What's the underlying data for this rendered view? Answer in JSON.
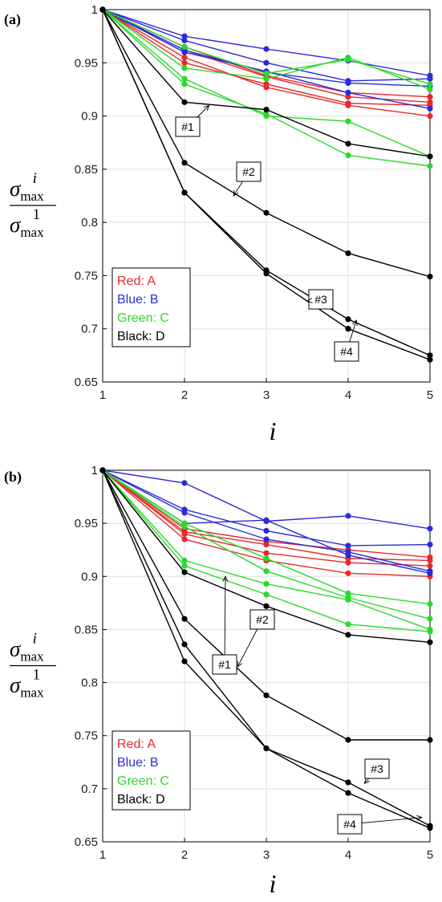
{
  "chart_data": [
    {
      "panel_label": "(a)",
      "type": "line",
      "x": [
        1,
        2,
        3,
        4,
        5
      ],
      "xlabel": "i",
      "ylabel": {
        "numerator": "σ",
        "num_sub": "max",
        "num_sup": "i",
        "denominator": "σ",
        "den_sub": "max",
        "den_sup": "1"
      },
      "xlim": [
        1,
        5
      ],
      "ylim": [
        0.65,
        1
      ],
      "x_ticks": [
        "1",
        "2",
        "3",
        "4",
        "5"
      ],
      "y_ticks": [
        "0.65",
        "0.7",
        "0.75",
        "0.8",
        "0.85",
        "0.9",
        "0.95",
        "1"
      ],
      "grid": true,
      "legend_position": "bottom-left",
      "legend": [
        {
          "label": "Red: A",
          "color": "#e8292b"
        },
        {
          "label": "Blue: B",
          "color": "#2b2bd9"
        },
        {
          "label": "Green: C",
          "color": "#2bd92b"
        },
        {
          "label": "Black: D",
          "color": "#000000"
        }
      ],
      "series": [
        {
          "group": "A",
          "color": "#e8292b",
          "values": [
            1,
            0.955,
            0.927,
            0.91,
            0.9
          ]
        },
        {
          "group": "A",
          "color": "#e8292b",
          "values": [
            1,
            0.962,
            0.937,
            0.918,
            0.913
          ]
        },
        {
          "group": "A",
          "color": "#e8292b",
          "values": [
            1,
            0.965,
            0.938,
            0.922,
            0.918
          ]
        },
        {
          "group": "A",
          "color": "#e8292b",
          "values": [
            1,
            0.95,
            0.93,
            0.912,
            0.91
          ]
        },
        {
          "group": "B",
          "color": "#2b2bd9",
          "values": [
            1,
            0.975,
            0.963,
            0.952,
            0.938
          ]
        },
        {
          "group": "B",
          "color": "#2b2bd9",
          "values": [
            1,
            0.971,
            0.95,
            0.933,
            0.935
          ]
        },
        {
          "group": "B",
          "color": "#2b2bd9",
          "values": [
            1,
            0.962,
            0.941,
            0.931,
            0.928
          ]
        },
        {
          "group": "B",
          "color": "#2b2bd9",
          "values": [
            1,
            0.96,
            0.942,
            0.922,
            0.907
          ]
        },
        {
          "group": "C",
          "color": "#2bd92b",
          "values": [
            1,
            0.945,
            0.935,
            0.955,
            0.925
          ]
        },
        {
          "group": "C",
          "color": "#2bd92b",
          "values": [
            1,
            0.935,
            0.9,
            0.895,
            0.862
          ]
        },
        {
          "group": "C",
          "color": "#2bd92b",
          "values": [
            1,
            0.93,
            0.902,
            0.863,
            0.853
          ]
        },
        {
          "group": "C",
          "color": "#2bd92b",
          "values": [
            1,
            0.965,
            0.94,
            0.953,
            0.93
          ]
        },
        {
          "group": "D",
          "color": "#000000",
          "values": [
            1,
            0.913,
            0.906,
            0.874,
            0.862
          ]
        },
        {
          "group": "D",
          "color": "#000000",
          "values": [
            1,
            0.856,
            0.809,
            0.771,
            0.749
          ]
        },
        {
          "group": "D",
          "color": "#000000",
          "values": [
            1,
            0.828,
            0.755,
            0.709,
            0.675
          ]
        },
        {
          "group": "D",
          "color": "#000000",
          "values": [
            1,
            0.828,
            0.752,
            0.7,
            0.671
          ]
        }
      ],
      "annotations": [
        {
          "text": "#1",
          "target": [
            2.3,
            0.91
          ]
        },
        {
          "text": "#2",
          "target": [
            2.6,
            0.825
          ]
        },
        {
          "text": "#3",
          "target": [
            3.5,
            0.726
          ]
        },
        {
          "text": "#4",
          "target": [
            4.1,
            0.708
          ]
        }
      ]
    },
    {
      "panel_label": "(b)",
      "type": "line",
      "x": [
        1,
        2,
        3,
        4,
        5
      ],
      "xlabel": "i",
      "ylabel": {
        "numerator": "σ",
        "num_sub": "max",
        "num_sup": "i",
        "denominator": "σ",
        "den_sub": "max",
        "den_sup": "1"
      },
      "xlim": [
        1,
        5
      ],
      "ylim": [
        0.65,
        1
      ],
      "x_ticks": [
        "1",
        "2",
        "3",
        "4",
        "5"
      ],
      "y_ticks": [
        "0.65",
        "0.7",
        "0.75",
        "0.8",
        "0.85",
        "0.9",
        "0.95",
        "1"
      ],
      "grid": true,
      "legend_position": "bottom-left",
      "legend": [
        {
          "label": "Red: A",
          "color": "#e8292b"
        },
        {
          "label": "Blue: B",
          "color": "#2b2bd9"
        },
        {
          "label": "Green: C",
          "color": "#2bd92b"
        },
        {
          "label": "Black: D",
          "color": "#000000"
        }
      ],
      "series": [
        {
          "group": "A",
          "color": "#e8292b",
          "values": [
            1,
            0.935,
            0.915,
            0.903,
            0.9
          ]
        },
        {
          "group": "A",
          "color": "#e8292b",
          "values": [
            1,
            0.94,
            0.922,
            0.913,
            0.91
          ]
        },
        {
          "group": "A",
          "color": "#e8292b",
          "values": [
            1,
            0.942,
            0.93,
            0.917,
            0.915
          ]
        },
        {
          "group": "A",
          "color": "#e8292b",
          "values": [
            1,
            0.945,
            0.933,
            0.925,
            0.918
          ]
        },
        {
          "group": "B",
          "color": "#2b2bd9",
          "values": [
            1,
            0.988,
            0.952,
            0.957,
            0.945
          ]
        },
        {
          "group": "B",
          "color": "#2b2bd9",
          "values": [
            1,
            0.963,
            0.943,
            0.929,
            0.93
          ]
        },
        {
          "group": "B",
          "color": "#2b2bd9",
          "values": [
            1,
            0.96,
            0.935,
            0.923,
            0.905
          ]
        },
        {
          "group": "B",
          "color": "#2b2bd9",
          "values": [
            1,
            0.95,
            0.953,
            0.92,
            0.903
          ]
        },
        {
          "group": "C",
          "color": "#2bd92b",
          "values": [
            1,
            0.95,
            0.917,
            0.884,
            0.874
          ]
        },
        {
          "group": "C",
          "color": "#2bd92b",
          "values": [
            1,
            0.947,
            0.905,
            0.88,
            0.86
          ]
        },
        {
          "group": "C",
          "color": "#2bd92b",
          "values": [
            1,
            0.915,
            0.893,
            0.878,
            0.85
          ]
        },
        {
          "group": "C",
          "color": "#2bd92b",
          "values": [
            1,
            0.91,
            0.883,
            0.855,
            0.848
          ]
        },
        {
          "group": "D",
          "color": "#000000",
          "values": [
            1,
            0.904,
            0.872,
            0.845,
            0.838
          ]
        },
        {
          "group": "D",
          "color": "#000000",
          "values": [
            1,
            0.86,
            0.788,
            0.746,
            0.746
          ]
        },
        {
          "group": "D",
          "color": "#000000",
          "values": [
            1,
            0.836,
            0.738,
            0.706,
            0.665
          ]
        },
        {
          "group": "D",
          "color": "#000000",
          "values": [
            1,
            0.82,
            0.738,
            0.696,
            0.663
          ]
        }
      ],
      "annotations": [
        {
          "text": "#1",
          "target": [
            2.5,
            0.9
          ]
        },
        {
          "text": "#2",
          "target": [
            2.65,
            0.815
          ]
        },
        {
          "text": "#3",
          "target": [
            4.2,
            0.705
          ]
        },
        {
          "text": "#4",
          "target": [
            4.9,
            0.673
          ]
        }
      ]
    }
  ],
  "colors": {
    "axis": "#000000",
    "grid": "#e0e0e0"
  }
}
